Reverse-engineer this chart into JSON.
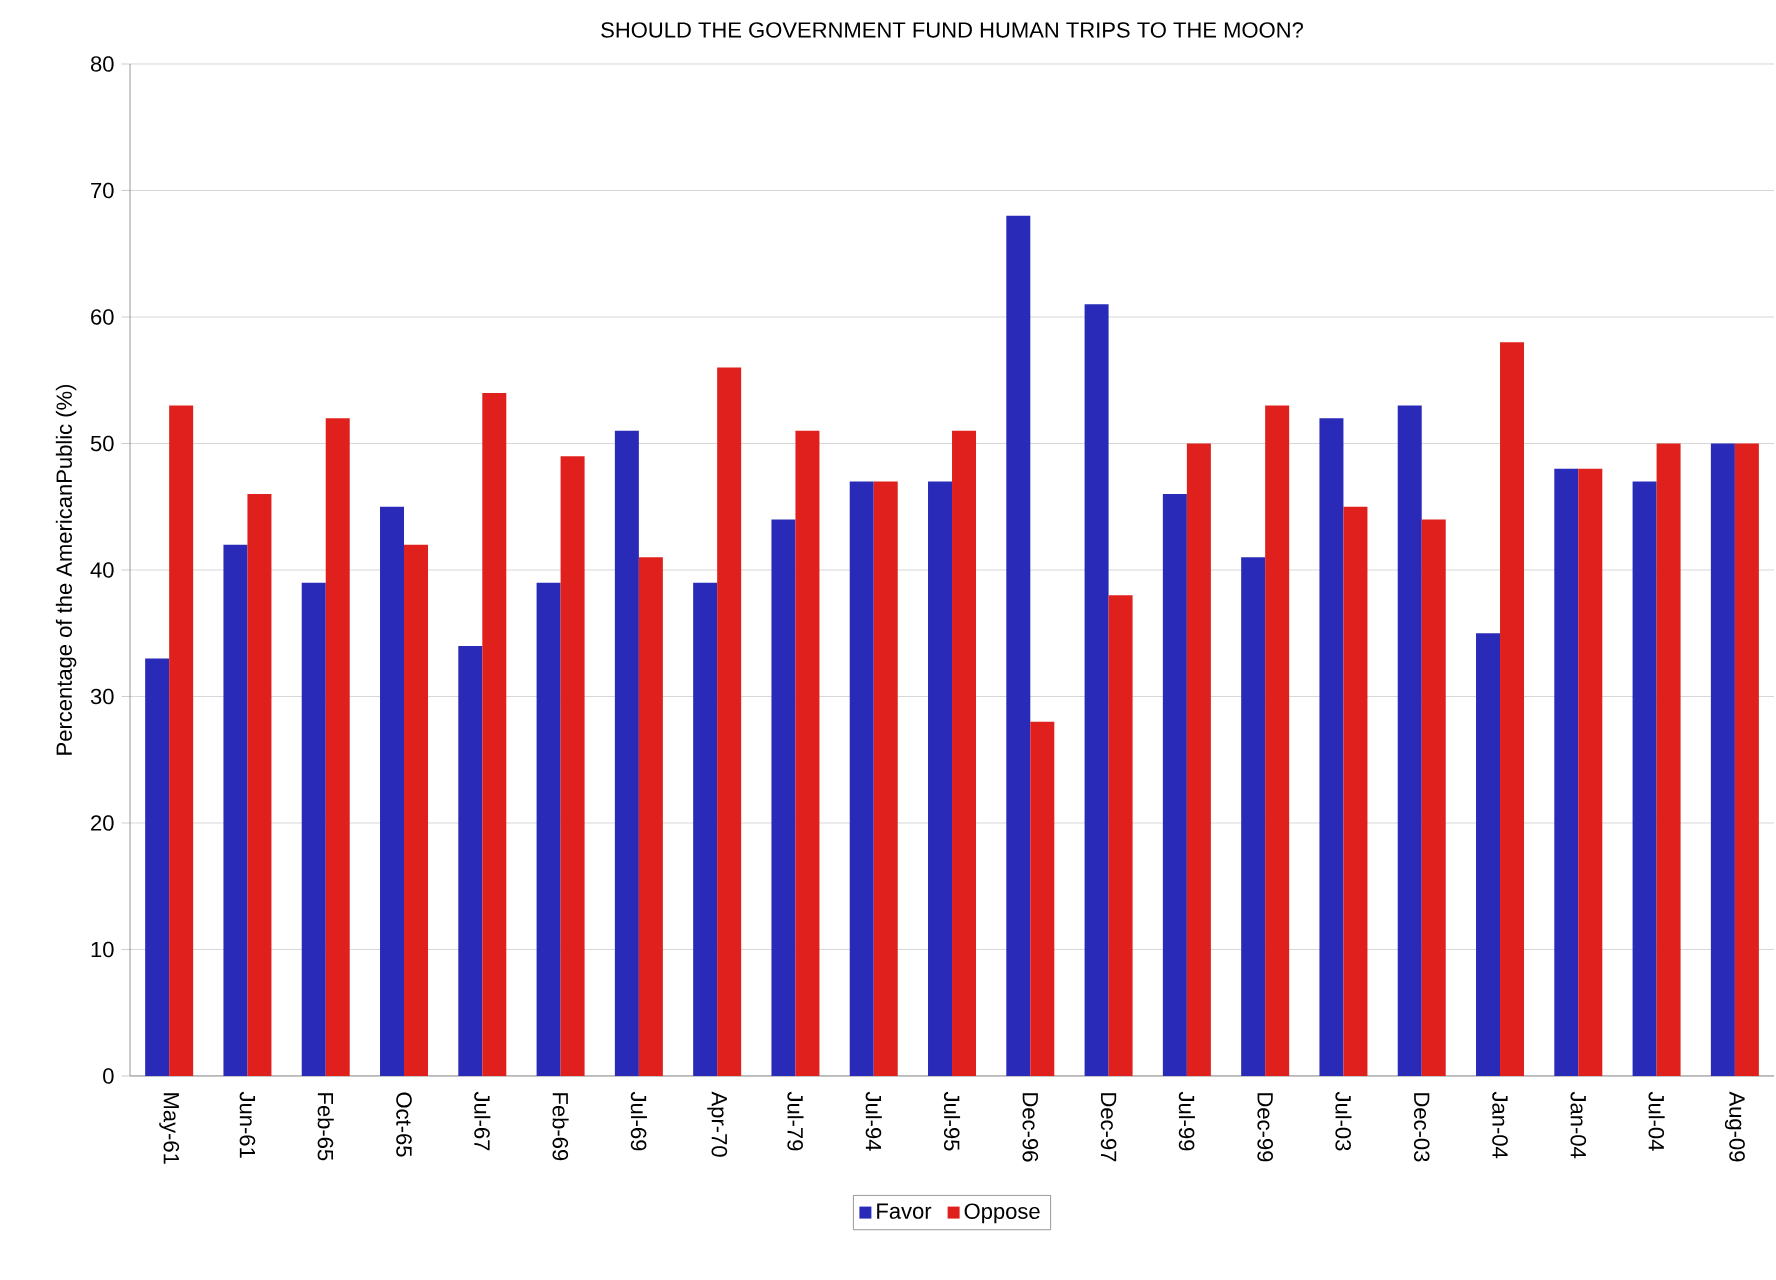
{
  "chart_data": {
    "type": "bar",
    "title": "SHOULD THE GOVERNMENT FUND HUMAN TRIPS TO THE MOON?",
    "ylabel": "Percentage of the AmericanPublic (%)",
    "categories": [
      "May-61",
      "Jun-61",
      "Feb-65",
      "Oct-65",
      "Jul-67",
      "Feb-69",
      "Jul-69",
      "Apr-70",
      "Jul-79",
      "Jul-94",
      "Jul-95",
      "Dec-96",
      "Dec-97",
      "Jul-99",
      "Dec-99",
      "Jul-03",
      "Dec-03",
      "Jan-04",
      "Jan-04",
      "Jul-04",
      "Aug-09"
    ],
    "series": [
      {
        "name": "Favor",
        "color": "#2a2ab8",
        "values": [
          33,
          42,
          39,
          45,
          34,
          39,
          51,
          39,
          44,
          47,
          47,
          68,
          61,
          46,
          41,
          52,
          53,
          35,
          48,
          47,
          50
        ]
      },
      {
        "name": "Oppose",
        "color": "#e0201c",
        "values": [
          53,
          46,
          52,
          42,
          54,
          49,
          41,
          56,
          51,
          47,
          51,
          28,
          38,
          50,
          53,
          45,
          44,
          58,
          48,
          50,
          50
        ]
      }
    ],
    "ylim": [
      0,
      80
    ],
    "yticks": [
      0,
      10,
      20,
      30,
      40,
      50,
      60,
      70,
      80
    ],
    "grid": "y",
    "legend": "bottom"
  }
}
